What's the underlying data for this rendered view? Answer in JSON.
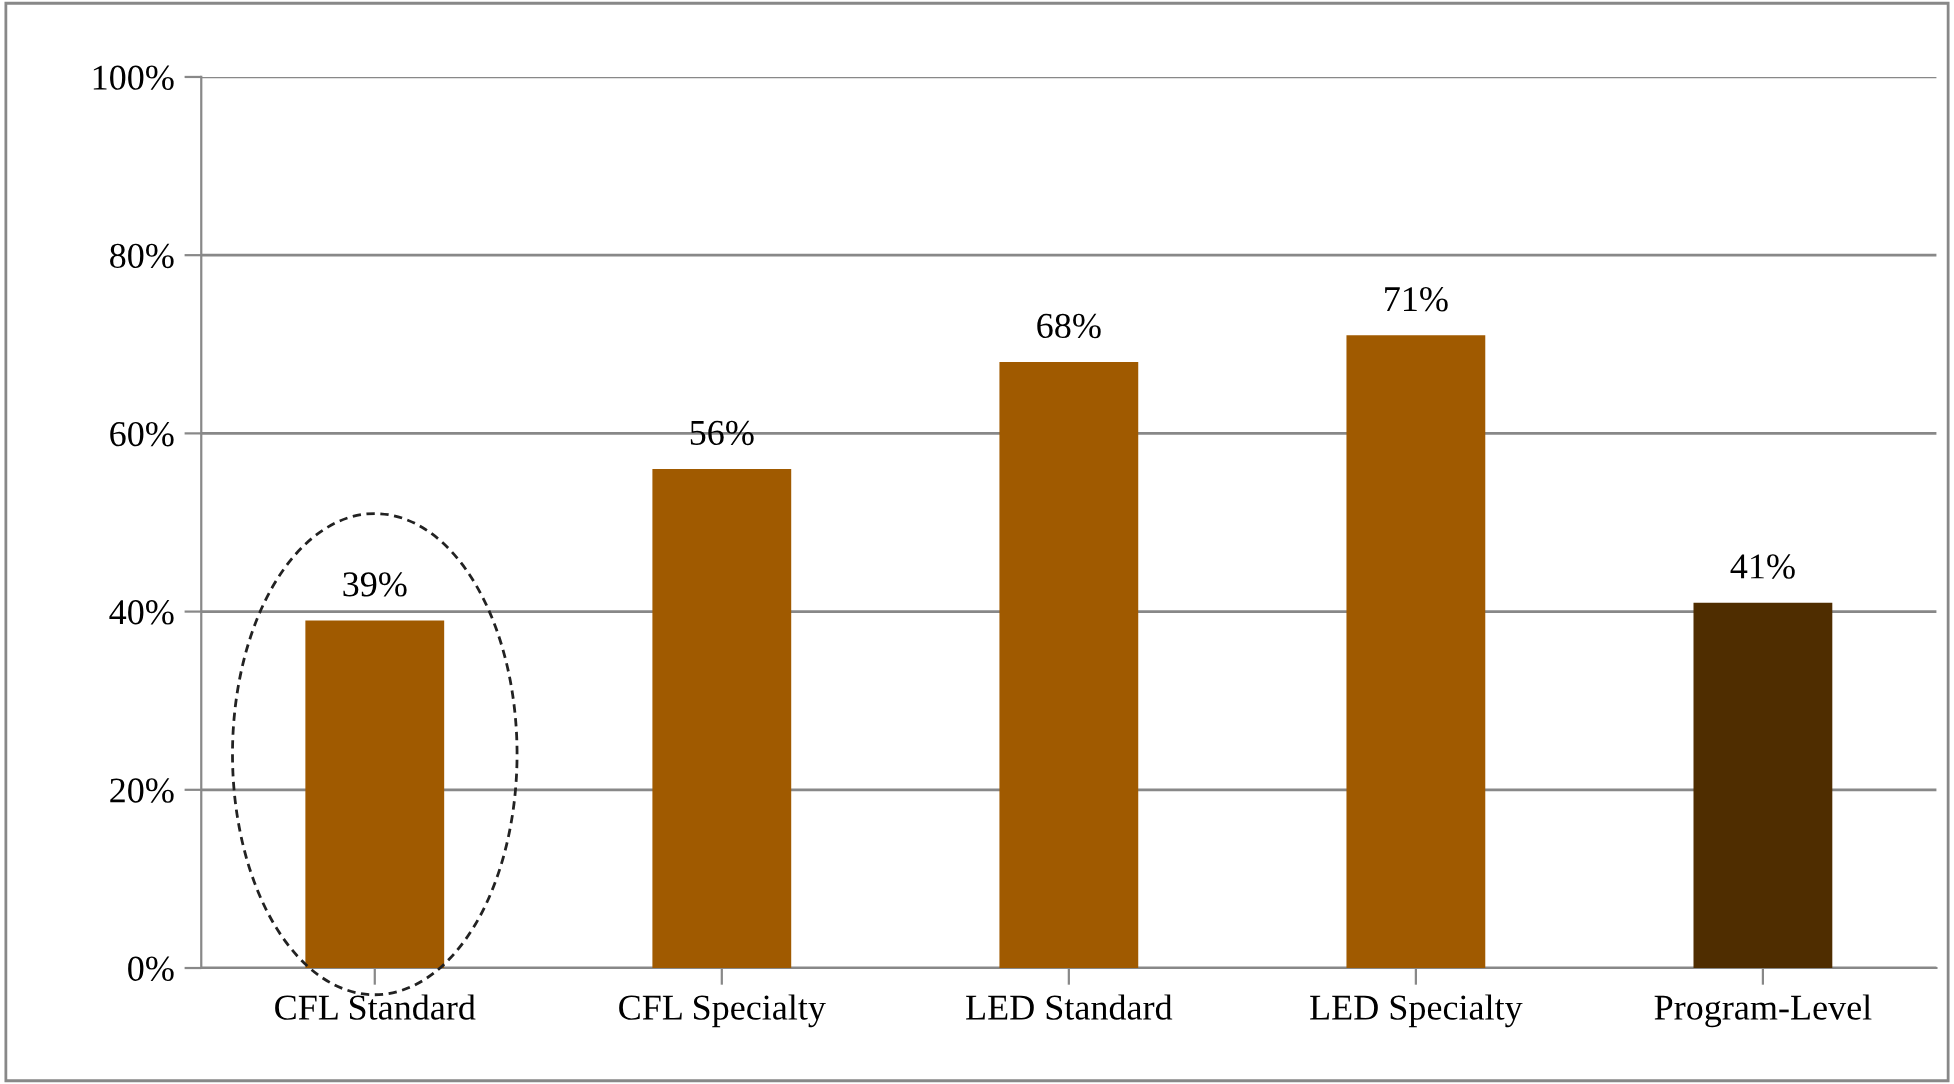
{
  "chart_data": {
    "type": "bar",
    "categories": [
      "CFL Standard",
      "CFL Specialty",
      "LED Standard",
      "LED Specialty",
      "Program-Level"
    ],
    "values": [
      39,
      56,
      68,
      71,
      41
    ],
    "colors": [
      "#a05a00",
      "#a05a00",
      "#a05a00",
      "#a05a00",
      "#4f2d00"
    ],
    "value_labels": [
      "39%",
      "56%",
      "68%",
      "71%",
      "41%"
    ],
    "ylim": [
      0,
      100
    ],
    "yticks": [
      {
        "value": 0,
        "label": "0%"
      },
      {
        "value": 20,
        "label": "20%"
      },
      {
        "value": 40,
        "label": "40%"
      },
      {
        "value": 60,
        "label": "60%"
      },
      {
        "value": 80,
        "label": "80%"
      },
      {
        "value": 100,
        "label": "100%"
      }
    ],
    "grid": "y",
    "legend": false
  }
}
